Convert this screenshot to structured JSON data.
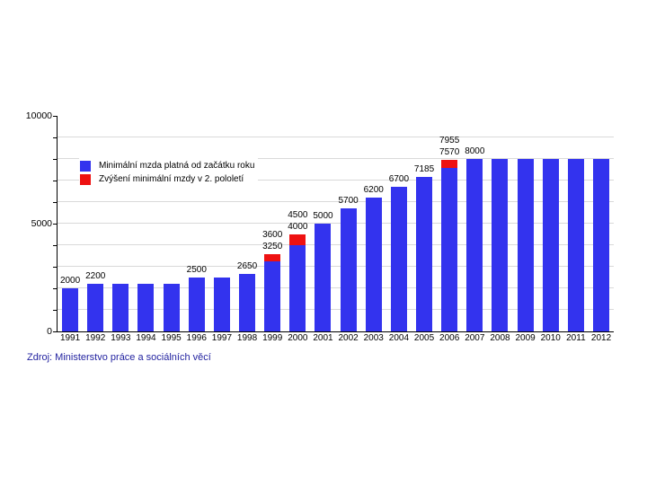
{
  "chart_data": {
    "type": "bar",
    "title": "",
    "xlabel": "",
    "ylabel": "",
    "ylim": [
      0,
      10000
    ],
    "grid_step": 1000,
    "grid": true,
    "legend_position": "top-left-inside",
    "categories": [
      "1991",
      "1992",
      "1993",
      "1994",
      "1995",
      "1996",
      "1997",
      "1998",
      "1999",
      "2000",
      "2001",
      "2002",
      "2003",
      "2004",
      "2005",
      "2006",
      "2007",
      "2008",
      "2009",
      "2010",
      "2011",
      "2012"
    ],
    "series": [
      {
        "name": "Minimální mzda platná od začátku roku",
        "color": "#3333ee",
        "values": [
          2000,
          2200,
          2200,
          2200,
          2200,
          2500,
          2500,
          2650,
          3250,
          4000,
          5000,
          5700,
          6200,
          6700,
          7185,
          7570,
          8000,
          8000,
          8000,
          8000,
          8000,
          8000
        ]
      },
      {
        "name": "Zvýšení minimální mzdy v 2. pololetí",
        "color": "#ee1111",
        "values": [
          0,
          0,
          0,
          0,
          0,
          0,
          0,
          0,
          350,
          500,
          0,
          0,
          0,
          0,
          0,
          385,
          0,
          0,
          0,
          0,
          0,
          0
        ]
      }
    ],
    "bar_labels": [
      [
        "2000"
      ],
      [
        "2200"
      ],
      [],
      [],
      [],
      [
        "2500"
      ],
      [],
      [
        "2650"
      ],
      [
        "3600",
        "3250"
      ],
      [
        "4500",
        "4000"
      ],
      [
        "5000"
      ],
      [
        "5700"
      ],
      [
        "6200"
      ],
      [
        "6700"
      ],
      [
        "7185"
      ],
      [
        "7955",
        "7570"
      ],
      [
        "8000"
      ],
      [],
      [],
      [],
      [],
      []
    ],
    "yticks_labeled": [
      {
        "value": 0,
        "label": "0"
      },
      {
        "value": 5000,
        "label": "5000"
      },
      {
        "value": 10000,
        "label": "10000"
      }
    ]
  },
  "source": {
    "text": "Zdroj: Ministerstvo práce a sociálních věcí"
  },
  "colors": {
    "bar_base": "#3333ee",
    "bar_top": "#ee1111",
    "gridline": "#d9d9d9",
    "axis": "#000000",
    "source_text": "#2323a0"
  }
}
